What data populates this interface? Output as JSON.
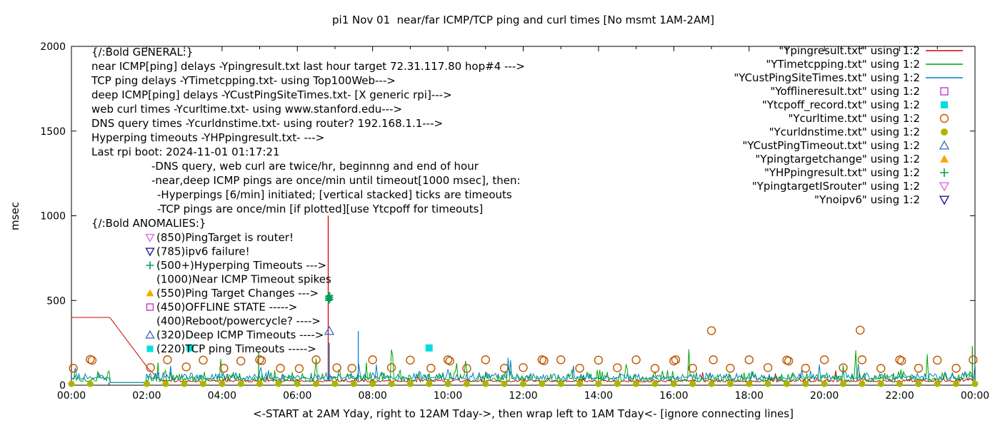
{
  "chart_data": {
    "type": "line+scatter",
    "title": "pi1 Nov 01  near/far ICMP/TCP ping and curl times [No msmt 1AM-2AM]",
    "xlabel": "<-START at 2AM Yday, right to 12AM Tday->, then wrap left to 1AM Tday<- [ignore connecting lines]",
    "ylabel": "msec",
    "xlim": [
      0,
      24
    ],
    "ylim": [
      0,
      2000
    ],
    "x_ticks": [
      {
        "v": 0,
        "label": "00:00"
      },
      {
        "v": 2,
        "label": "02:00"
      },
      {
        "v": 4,
        "label": "04:00"
      },
      {
        "v": 6,
        "label": "06:00"
      },
      {
        "v": 8,
        "label": "08:00"
      },
      {
        "v": 10,
        "label": "10:00"
      },
      {
        "v": 12,
        "label": "12:00"
      },
      {
        "v": 14,
        "label": "14:00"
      },
      {
        "v": 16,
        "label": "16:00"
      },
      {
        "v": 18,
        "label": "18:00"
      },
      {
        "v": 20,
        "label": "20:00"
      },
      {
        "v": 22,
        "label": "22:00"
      },
      {
        "v": 24,
        "label": "00:00"
      }
    ],
    "y_ticks": [
      {
        "v": 0,
        "label": "0"
      },
      {
        "v": 500,
        "label": "500"
      },
      {
        "v": 1000,
        "label": "1000"
      },
      {
        "v": 1500,
        "label": "1500"
      },
      {
        "v": 2000,
        "label": "2000"
      }
    ],
    "legend_position": "top-right-inside",
    "series": [
      {
        "id": "ypingresult",
        "name": "\"Ypingresult.txt\" using 1:2",
        "type": "line",
        "color": "#d40000",
        "noise": {
          "seed": 7,
          "baseline": 20,
          "amp": 22,
          "spike_prob": 0.012,
          "spike_max": 60
        },
        "segments": [
          [
            0,
            400
          ],
          [
            1.02,
            400
          ],
          [
            2.05,
            95
          ],
          [
            2.35,
            35
          ]
        ],
        "spikes": [
          [
            6.82,
            1000
          ]
        ]
      },
      {
        "id": "ytimetcpping",
        "name": "\"YTimetcpping.txt\" using 1:2",
        "type": "line",
        "color": "#00a400",
        "noise": {
          "seed": 13,
          "baseline": 22,
          "amp": 75,
          "spike_prob": 0.03,
          "spike_max": 170
        },
        "quiet": [
          1.02,
          2.0
        ],
        "spikes": [
          [
            4.97,
            195
          ],
          [
            23.93,
            230
          ]
        ]
      },
      {
        "id": "ycustpingsitetimes",
        "name": "\"YCustPingSiteTimes.txt\" using 1:2",
        "type": "line",
        "color": "#0082c8",
        "noise": {
          "seed": 29,
          "baseline": 35,
          "amp": 48,
          "spike_prob": 0.025,
          "spike_max": 110
        },
        "quiet": [
          1.02,
          2.0
        ],
        "spikes": [
          [
            6.85,
            250
          ],
          [
            7.62,
            320
          ]
        ]
      },
      {
        "id": "yofflineresult",
        "name": "\"Yofflineresult.txt\" using 1:2",
        "type": "scatter",
        "marker": "square-open",
        "color": "#cc33cc",
        "points": []
      },
      {
        "id": "ytcpoff_record",
        "name": "\"Ytcpoff_record.txt\" using 1:2",
        "type": "scatter",
        "marker": "square-filled",
        "color": "#00dede",
        "points": [
          [
            3.15,
            220
          ],
          [
            9.5,
            220
          ]
        ]
      },
      {
        "id": "ycurltime",
        "name": "\"Ycurltime.txt\" using 1:2",
        "type": "scatter",
        "marker": "circle-open",
        "color": "#c05800",
        "points": [
          [
            0.05,
            100
          ],
          [
            0.5,
            152
          ],
          [
            0.55,
            147
          ],
          [
            2.1,
            104
          ],
          [
            2.55,
            150
          ],
          [
            3.05,
            108
          ],
          [
            3.5,
            148
          ],
          [
            4.05,
            100
          ],
          [
            4.5,
            143
          ],
          [
            5.0,
            150
          ],
          [
            5.05,
            145
          ],
          [
            5.55,
            100
          ],
          [
            6.05,
            98
          ],
          [
            6.5,
            150
          ],
          [
            7.05,
            103
          ],
          [
            7.45,
            100
          ],
          [
            8.0,
            150
          ],
          [
            8.5,
            104
          ],
          [
            9.0,
            148
          ],
          [
            9.55,
            100
          ],
          [
            10.0,
            150
          ],
          [
            10.05,
            143
          ],
          [
            10.5,
            99
          ],
          [
            11.0,
            150
          ],
          [
            11.5,
            100
          ],
          [
            12.0,
            104
          ],
          [
            12.5,
            150
          ],
          [
            12.55,
            145
          ],
          [
            13.0,
            150
          ],
          [
            13.5,
            100
          ],
          [
            14.0,
            148
          ],
          [
            14.5,
            103
          ],
          [
            15.0,
            150
          ],
          [
            15.5,
            99
          ],
          [
            16.0,
            143
          ],
          [
            16.05,
            150
          ],
          [
            16.5,
            100
          ],
          [
            17.0,
            322
          ],
          [
            17.05,
            150
          ],
          [
            17.5,
            100
          ],
          [
            18.0,
            150
          ],
          [
            18.5,
            104
          ],
          [
            19.0,
            148
          ],
          [
            19.05,
            143
          ],
          [
            19.5,
            100
          ],
          [
            20.0,
            150
          ],
          [
            20.5,
            103
          ],
          [
            20.95,
            325
          ],
          [
            21.0,
            150
          ],
          [
            21.5,
            99
          ],
          [
            22.0,
            150
          ],
          [
            22.05,
            144
          ],
          [
            22.5,
            100
          ],
          [
            23.0,
            148
          ],
          [
            23.5,
            100
          ],
          [
            23.95,
            150
          ]
        ]
      },
      {
        "id": "ycurldnstime",
        "name": "\"Ycurldnstime.txt\" using 1:2",
        "type": "scatter",
        "marker": "circle-filled",
        "color": "#b2b200",
        "points": [
          [
            0,
            8
          ],
          [
            0.5,
            8
          ],
          [
            2,
            8
          ],
          [
            2.5,
            8
          ],
          [
            3,
            8
          ],
          [
            3.5,
            8
          ],
          [
            4,
            8
          ],
          [
            4.5,
            8
          ],
          [
            5,
            8
          ],
          [
            5.5,
            8
          ],
          [
            6,
            8
          ],
          [
            6.5,
            8
          ],
          [
            7,
            8
          ],
          [
            7.5,
            8
          ],
          [
            8,
            8
          ],
          [
            8.5,
            8
          ],
          [
            9,
            8
          ],
          [
            9.5,
            8
          ],
          [
            10,
            8
          ],
          [
            10.5,
            8
          ],
          [
            11,
            8
          ],
          [
            11.5,
            8
          ],
          [
            12,
            8
          ],
          [
            12.5,
            8
          ],
          [
            13,
            8
          ],
          [
            13.5,
            8
          ],
          [
            14,
            8
          ],
          [
            14.5,
            8
          ],
          [
            15,
            8
          ],
          [
            15.5,
            8
          ],
          [
            16,
            8
          ],
          [
            16.5,
            8
          ],
          [
            17,
            8
          ],
          [
            17.5,
            8
          ],
          [
            18,
            8
          ],
          [
            18.5,
            8
          ],
          [
            19,
            8
          ],
          [
            19.5,
            8
          ],
          [
            20,
            8
          ],
          [
            20.5,
            8
          ],
          [
            21,
            8
          ],
          [
            21.5,
            8
          ],
          [
            22,
            8
          ],
          [
            22.5,
            8
          ],
          [
            23,
            8
          ],
          [
            23.5,
            8
          ],
          [
            24,
            8
          ]
        ]
      },
      {
        "id": "ycustpingtimeout",
        "name": "\"YCustPingTimeout.txt\" using 1:2",
        "type": "scatter",
        "marker": "triangle-open",
        "color": "#4472c4",
        "points": [
          [
            6.85,
            320
          ]
        ]
      },
      {
        "id": "ypingtargetchange",
        "name": "\"Ypingtargetchange\" using 1:2",
        "type": "scatter",
        "marker": "triangle-filled",
        "color": "#ffa400",
        "points": []
      },
      {
        "id": "yhppingresult",
        "name": "\"YHPpingresult.txt\" using 1:2",
        "type": "scatter",
        "marker": "plus",
        "color": "#00a050",
        "points": [
          [
            6.83,
            500
          ],
          [
            6.83,
            512
          ],
          [
            6.83,
            524
          ],
          [
            6.86,
            506
          ],
          [
            6.86,
            518
          ],
          [
            6.86,
            530
          ]
        ]
      },
      {
        "id": "ypingtargetisrouter",
        "name": "\"YpingtargetISrouter\" using 1:2",
        "type": "scatter",
        "marker": "triangle-down-open",
        "color": "#da70d6",
        "points": []
      },
      {
        "id": "ynoipv6",
        "name": "\"Ynoipv6\" using 1:2",
        "type": "scatter",
        "marker": "triangle-down-open",
        "color": "#1c1c8c",
        "points": []
      }
    ],
    "annotations": {
      "general": {
        "heading": "{/:Bold GENERAL:}",
        "lines": [
          "near ICMP[ping] delays -Ypingresult.txt last hour target 72.31.117.80 hop#4 --->",
          "TCP ping delays -YTimetcpping.txt- using Top100Web--->",
          "deep ICMP[ping] delays -YCustPingSiteTimes.txt- [X generic rpi]--->",
          "web curl times -Ycurltime.txt- using www.stanford.edu--->",
          "DNS query times -Ycurldnstime.txt- using router? 192.168.1.1--->",
          "Hyperping timeouts -YHPpingresult.txt- --->",
          "Last rpi boot: 2024-11-01 01:17:21"
        ],
        "notes": [
          "-DNS query, web curl are twice/hr, beginnng and end of hour",
          "-near,deep ICMP pings are once/min until timeout[1000 msec], then:",
          " -Hyperpings [6/min] initiated; [vertical stacked] ticks are timeouts",
          " -TCP pings are once/min [if plotted][use Ytcpoff for timeouts]"
        ]
      },
      "anomalies": {
        "heading": "{/:Bold ANOMALIES:}",
        "items": [
          {
            "marker": "triangle-down-open",
            "color": "#da70d6",
            "text": "(850)PingTarget is router!"
          },
          {
            "marker": "triangle-down-open",
            "color": "#1c1c8c",
            "text": "(785)ipv6 failure!"
          },
          {
            "marker": "plus",
            "color": "#00a050",
            "text": "(500+)Hyperping Timeouts --->"
          },
          {
            "marker": "none",
            "color": "",
            "text": "(1000)Near ICMP Timeout spikes"
          },
          {
            "marker": "triangle-filled",
            "color": "#ffa400",
            "text": "(550)Ping Target Changes --->"
          },
          {
            "marker": "square-open",
            "color": "#cc33cc",
            "text": "(450)OFFLINE STATE ----->"
          },
          {
            "marker": "none",
            "color": "",
            "text": "(400)Reboot/powercycle? ---->"
          },
          {
            "marker": "triangle-open",
            "color": "#4472c4",
            "text": "(320)Deep ICMP Timeouts ---->"
          },
          {
            "marker": "square-filled",
            "color": "#00dede",
            "text": "(220)TCP ping Timeouts ----->"
          }
        ]
      }
    }
  }
}
